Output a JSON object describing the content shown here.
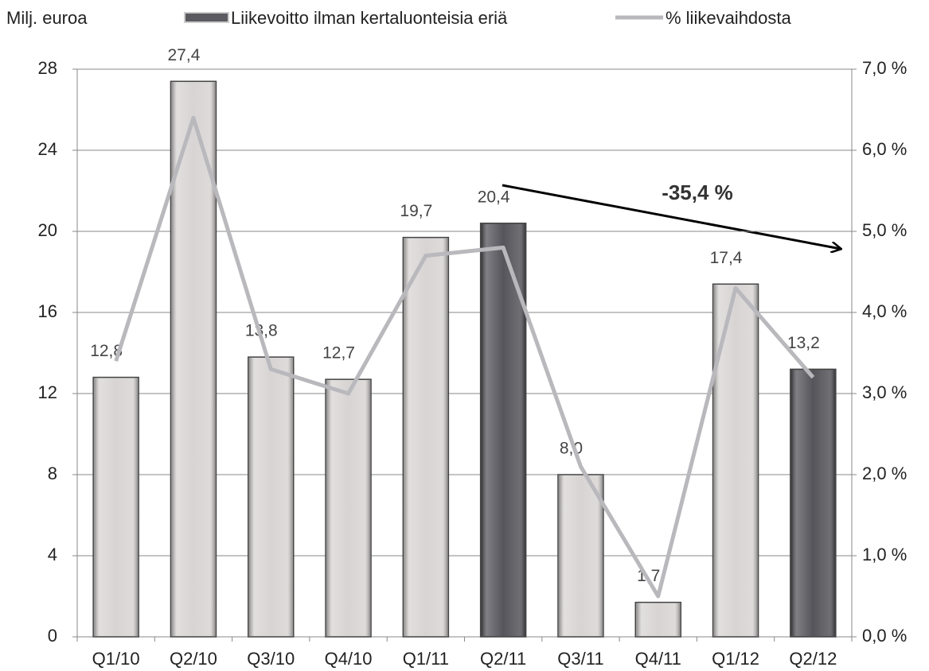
{
  "chart_data": {
    "type": "bar",
    "y_label": "Milj. euroa",
    "categories": [
      "Q1/10",
      "Q2/10",
      "Q3/10",
      "Q4/10",
      "Q1/11",
      "Q2/11",
      "Q3/11",
      "Q4/11",
      "Q1/12",
      "Q2/12"
    ],
    "series": [
      {
        "name": "Liikevoitto ilman kertaluonteisia eriä",
        "type": "bar",
        "color": "#5a5a60",
        "colors": [
          "#d8d4d4",
          "#d8d4d4",
          "#d8d4d4",
          "#d8d4d4",
          "#d8d4d4",
          "#55555b",
          "#d8d4d4",
          "#d8d4d4",
          "#d8d4d4",
          "#55555b"
        ],
        "values": [
          12.8,
          27.4,
          13.8,
          12.7,
          19.7,
          20.4,
          8.0,
          1.7,
          17.4,
          13.2
        ],
        "value_labels": [
          "12,8",
          "27,4",
          "13,8",
          "12,7",
          "19,7",
          "20,4",
          "8,0",
          "1,7",
          "17,4",
          "13,2"
        ]
      },
      {
        "name": "% liikevaihdosta",
        "type": "line",
        "color": "#b9b9bd",
        "axis": "y2",
        "values": [
          3.4,
          6.4,
          3.3,
          3.0,
          4.7,
          4.8,
          2.1,
          0.5,
          4.3,
          3.2
        ]
      }
    ],
    "ylim": [
      0,
      28
    ],
    "yticks": [
      0,
      4,
      8,
      12,
      16,
      20,
      24,
      28
    ],
    "y2lim": [
      0,
      7
    ],
    "y2ticks": [
      {
        "value": 0,
        "label": "0,0 %"
      },
      {
        "value": 1,
        "label": "1,0 %"
      },
      {
        "value": 2,
        "label": "2,0 %"
      },
      {
        "value": 3,
        "label": "3,0 %"
      },
      {
        "value": 4,
        "label": "4,0 %"
      },
      {
        "value": 5,
        "label": "5,0 %"
      },
      {
        "value": 6,
        "label": "6,0 %"
      },
      {
        "value": 7,
        "label": "7,0 %"
      }
    ],
    "grid": true,
    "annotations": [
      {
        "text": "-35,4 %"
      }
    ]
  }
}
